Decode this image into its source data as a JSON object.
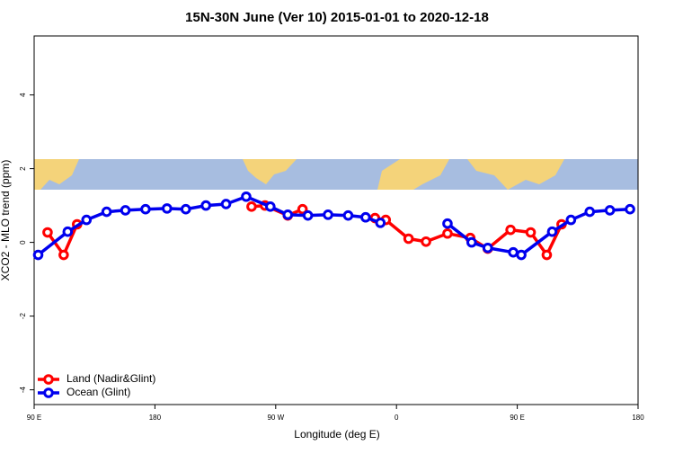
{
  "chart_data": {
    "type": "line",
    "title": "15N-30N June (Ver 10)   2015-01-01 to 2020-12-18",
    "x_label": "Longitude (deg E)",
    "y_label": "XCO2 - MLO trend (ppm)",
    "xlim": [
      90,
      540
    ],
    "ylim": [
      -4.4,
      5.6
    ],
    "xticks": [
      {
        "value": 90,
        "label": "90 E"
      },
      {
        "value": 180,
        "label": "180"
      },
      {
        "value": 270,
        "label": "90 W"
      },
      {
        "value": 360,
        "label": "0"
      },
      {
        "value": 450,
        "label": "90 E"
      },
      {
        "value": 540,
        "label": "180"
      }
    ],
    "yticks": [
      -4,
      -2,
      0,
      2,
      4
    ],
    "legend": "bottom-left",
    "series": [
      {
        "name": "Land (Nadir&Glint)",
        "color": "#ff0000",
        "x": [
          100,
          112,
          122,
          null,
          252,
          262,
          279,
          290,
          null,
          344,
          352,
          369,
          382,
          398,
          415,
          428,
          445,
          460,
          472,
          483
        ],
        "values": [
          0.27,
          -0.34,
          0.49,
          null,
          0.97,
          1.0,
          0.73,
          0.9,
          null,
          0.66,
          0.61,
          0.1,
          0.02,
          0.24,
          0.12,
          -0.17,
          0.34,
          0.27,
          -0.34,
          0.49
        ]
      },
      {
        "name": "Ocean (Glint)",
        "color": "#0000ee",
        "x": [
          93,
          115,
          129,
          144,
          158,
          173,
          189,
          203,
          218,
          233,
          248,
          266,
          279,
          294,
          309,
          324,
          337,
          348,
          null,
          398,
          416,
          428,
          447,
          453,
          476,
          490,
          504,
          519,
          534
        ],
        "values": [
          -0.34,
          0.29,
          0.61,
          0.83,
          0.87,
          0.9,
          0.92,
          0.9,
          1.0,
          1.04,
          1.24,
          0.97,
          0.75,
          0.73,
          0.75,
          0.73,
          0.68,
          0.53,
          null,
          0.51,
          0.0,
          -0.15,
          -0.27,
          -0.34,
          0.29,
          0.61,
          0.83,
          0.87,
          0.9
        ]
      }
    ]
  }
}
